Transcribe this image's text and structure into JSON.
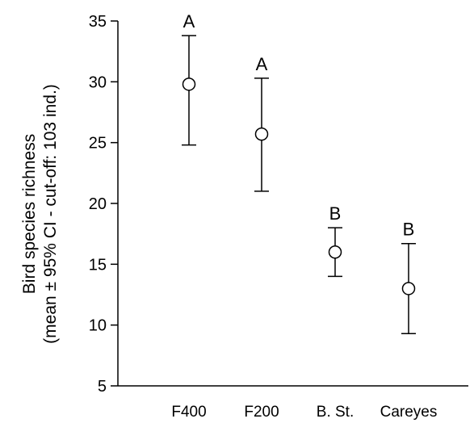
{
  "chart_data": {
    "type": "scatter",
    "categories": [
      "F400",
      "F200",
      "B. St.",
      "Careyes"
    ],
    "series": [
      {
        "means": [
          29.8,
          25.7,
          16.0,
          13.0
        ],
        "ci_lower": [
          24.8,
          21.0,
          14.0,
          9.3
        ],
        "ci_upper": [
          33.8,
          30.3,
          18.0,
          16.7
        ],
        "group_labels": [
          "A",
          "A",
          "B",
          "B"
        ]
      }
    ],
    "ylabel_line1": "Bird species richness",
    "ylabel_line2": "(mean ± 95% CI - cut-off: 103 ind.)",
    "xlabel": "",
    "ylim": [
      5,
      35
    ],
    "yticks": [
      5,
      10,
      15,
      20,
      25,
      30,
      35
    ],
    "grid": false,
    "legend": false
  }
}
